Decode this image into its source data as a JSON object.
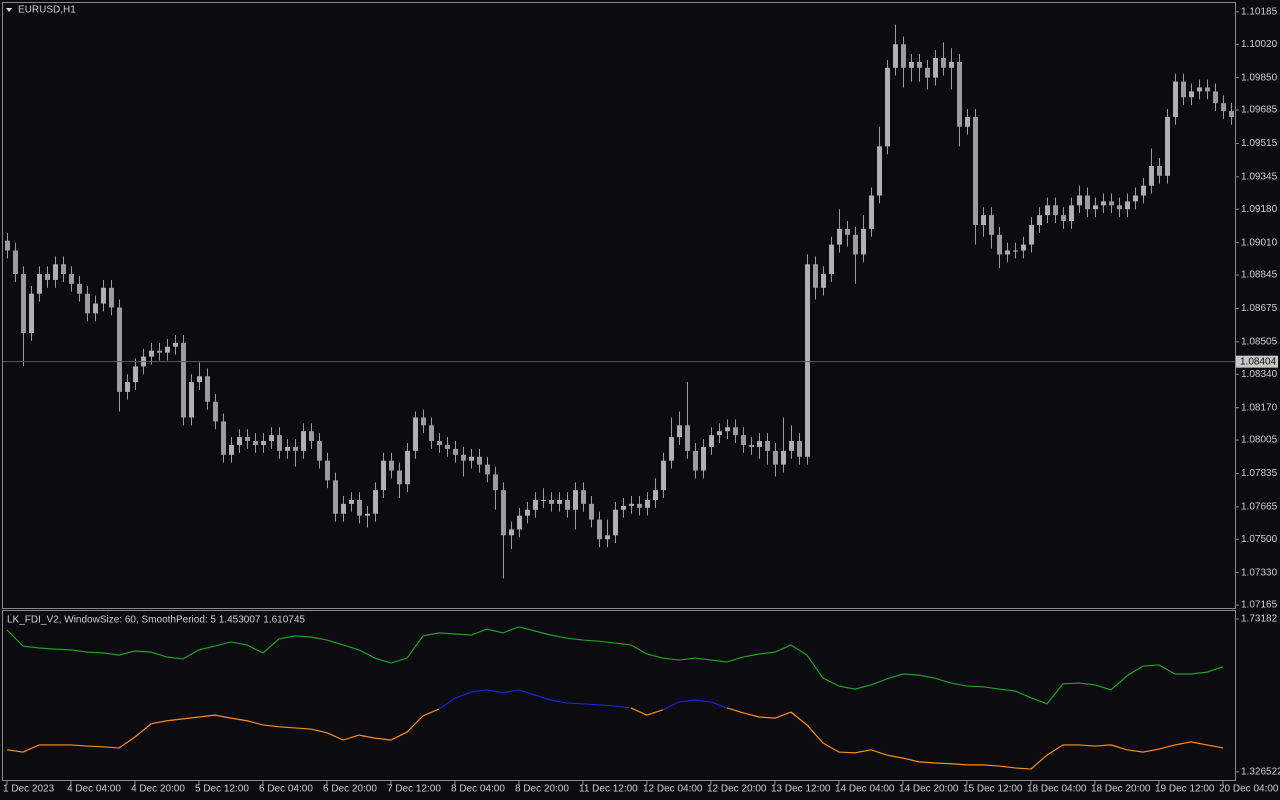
{
  "chart_data": [
    {
      "type": "candlestick",
      "title": "EURUSD,H1",
      "color": "#9c9c9c",
      "open": [
        1.0902,
        1.0897,
        1.0885,
        1.0855,
        1.0875,
        1.0885,
        1.0882,
        1.089,
        1.0885,
        1.088,
        1.0875,
        1.0865,
        1.087,
        1.0878,
        1.0868,
        1.0825,
        1.083,
        1.0838,
        1.0843,
        1.0846,
        1.0845,
        1.0848,
        1.085,
        1.0812,
        1.083,
        1.0833,
        1.082,
        1.081,
        1.0793,
        1.0798,
        1.0802,
        1.08,
        1.0798,
        1.08,
        1.0803,
        1.0795,
        1.0797,
        1.0795,
        1.0805,
        1.08,
        1.079,
        1.078,
        1.0763,
        1.0768,
        1.077,
        1.0762,
        1.0763,
        1.0775,
        1.079,
        1.0785,
        1.0778,
        1.0795,
        1.0812,
        1.0808,
        1.08,
        1.0798,
        1.0796,
        1.0793,
        1.079,
        1.0792,
        1.0788,
        1.0783,
        1.0775,
        1.0752,
        1.0755,
        1.0762,
        1.0765,
        1.077,
        1.077,
        1.0768,
        1.077,
        1.0765,
        1.0775,
        1.0768,
        1.076,
        1.075,
        1.0752,
        1.0765,
        1.0767,
        1.0768,
        1.0766,
        1.077,
        1.0775,
        1.079,
        1.0802,
        1.0808,
        1.0795,
        1.0785,
        1.0797,
        1.0803,
        1.0805,
        1.0807,
        1.0803,
        1.0798,
        1.0797,
        1.08,
        1.0795,
        1.0788,
        1.0795,
        1.08,
        1.0792,
        1.089,
        1.0878,
        1.0885,
        1.09,
        1.0908,
        1.0905,
        1.0895,
        1.0908,
        1.0925,
        1.095,
        1.099,
        1.1002,
        1.099,
        1.0993,
        1.099,
        1.0985,
        1.0995,
        1.099,
        1.0993,
        1.096,
        1.0965,
        1.091,
        1.0915,
        1.0905,
        1.0895,
        1.0897,
        1.0897,
        1.09,
        1.091,
        1.0915,
        1.092,
        1.0915,
        1.0912,
        1.092,
        1.0925,
        1.0918,
        1.092,
        1.0922,
        1.092,
        1.0918,
        1.0922,
        1.0925,
        1.093,
        1.094,
        1.0935,
        1.0965,
        1.0983,
        1.0975,
        1.0978,
        1.098,
        1.0978,
        1.0972,
        1.0968
      ],
      "high": [
        1.0906,
        1.0901,
        1.0889,
        1.0879,
        1.0889,
        1.0889,
        1.0894,
        1.0894,
        1.0889,
        1.0884,
        1.0879,
        1.0874,
        1.0882,
        1.0882,
        1.0872,
        1.0834,
        1.0842,
        1.0847,
        1.085,
        1.085,
        1.0852,
        1.0854,
        1.0854,
        1.0834,
        1.084,
        1.0837,
        1.0824,
        1.0814,
        1.0802,
        1.0806,
        1.0806,
        1.0804,
        1.0804,
        1.0807,
        1.0807,
        1.0801,
        1.0801,
        1.0809,
        1.0809,
        1.0804,
        1.0794,
        1.0784,
        1.0772,
        1.0774,
        1.0774,
        1.0767,
        1.0779,
        1.0794,
        1.0794,
        1.0789,
        1.0799,
        1.0815,
        1.0816,
        1.0812,
        1.0804,
        1.0802,
        1.08,
        1.0797,
        1.0796,
        1.0796,
        1.0792,
        1.0787,
        1.0779,
        1.0759,
        1.0766,
        1.0769,
        1.0774,
        1.0776,
        1.0774,
        1.0774,
        1.0774,
        1.0779,
        1.0779,
        1.0772,
        1.0764,
        1.076,
        1.0769,
        1.0771,
        1.0772,
        1.0772,
        1.0774,
        1.0781,
        1.0794,
        1.0812,
        1.0815,
        1.083,
        1.0799,
        1.0801,
        1.0807,
        1.0809,
        1.0811,
        1.0811,
        1.0807,
        1.0802,
        1.0804,
        1.0804,
        1.0799,
        1.0812,
        1.0808,
        1.0804,
        1.0895,
        1.0894,
        1.0889,
        1.0904,
        1.0918,
        1.0912,
        1.0909,
        1.0915,
        1.0929,
        1.096,
        1.0994,
        1.1012,
        1.1006,
        1.0997,
        1.0997,
        1.0994,
        1.0999,
        1.1003,
        1.1,
        1.0997,
        1.0969,
        1.0969,
        1.0919,
        1.0919,
        1.0909,
        1.0901,
        1.0901,
        1.0904,
        1.0914,
        1.0919,
        1.0924,
        1.0924,
        1.0919,
        1.0924,
        1.093,
        1.0929,
        1.0924,
        1.0926,
        1.0926,
        1.0924,
        1.0926,
        1.0929,
        1.0934,
        1.0949,
        1.0944,
        1.0969,
        1.0987,
        1.0987,
        1.0982,
        1.0984,
        1.0984,
        1.0982,
        1.0976,
        1.0972
      ],
      "low": [
        1.0893,
        1.0881,
        1.0838,
        1.0851,
        1.0871,
        1.0878,
        1.0878,
        1.0881,
        1.0876,
        1.0871,
        1.0861,
        1.0861,
        1.0866,
        1.0864,
        1.0815,
        1.0821,
        1.0826,
        1.0834,
        1.0839,
        1.0841,
        1.0841,
        1.0844,
        1.0808,
        1.0808,
        1.0826,
        1.0816,
        1.0806,
        1.0789,
        1.0789,
        1.0794,
        1.0796,
        1.0794,
        1.0794,
        1.0796,
        1.0791,
        1.0791,
        1.0787,
        1.0791,
        1.0796,
        1.0786,
        1.0776,
        1.0759,
        1.0759,
        1.0764,
        1.0758,
        1.0756,
        1.0759,
        1.0771,
        1.0781,
        1.0771,
        1.0774,
        1.0791,
        1.0804,
        1.0796,
        1.0794,
        1.0792,
        1.0789,
        1.0782,
        1.0786,
        1.0784,
        1.0779,
        1.0765,
        1.073,
        1.0745,
        1.0751,
        1.0758,
        1.0761,
        1.0766,
        1.0764,
        1.0764,
        1.0761,
        1.0755,
        1.0764,
        1.0756,
        1.0746,
        1.0746,
        1.0748,
        1.0761,
        1.0763,
        1.0762,
        1.0762,
        1.0766,
        1.0771,
        1.0786,
        1.0798,
        1.0791,
        1.0781,
        1.0781,
        1.0793,
        1.0799,
        1.0801,
        1.0799,
        1.0794,
        1.0793,
        1.0791,
        1.0788,
        1.0782,
        1.0784,
        1.0791,
        1.0788,
        1.0788,
        1.0872,
        1.0874,
        1.0881,
        1.0896,
        1.0899,
        1.088,
        1.0891,
        1.0904,
        1.0921,
        1.0946,
        1.0986,
        1.098,
        1.0983,
        1.0983,
        1.0979,
        1.0981,
        1.0986,
        1.0979,
        1.095,
        1.0956,
        1.09,
        1.0904,
        1.0898,
        1.0888,
        1.0891,
        1.0893,
        1.0893,
        1.0896,
        1.0906,
        1.0911,
        1.0911,
        1.0908,
        1.0908,
        1.0916,
        1.0914,
        1.0914,
        1.0916,
        1.0916,
        1.0914,
        1.0914,
        1.0918,
        1.0921,
        1.0926,
        1.0931,
        1.0931,
        1.0961,
        1.0971,
        1.0971,
        1.0974,
        1.0974,
        1.0968,
        1.0964,
        1.0961
      ],
      "close": [
        1.0897,
        1.0885,
        1.0855,
        1.0875,
        1.0885,
        1.0882,
        1.089,
        1.0885,
        1.088,
        1.0875,
        1.0865,
        1.087,
        1.0878,
        1.0868,
        1.0825,
        1.083,
        1.0838,
        1.0843,
        1.0846,
        1.0845,
        1.0848,
        1.085,
        1.0812,
        1.083,
        1.0833,
        1.082,
        1.081,
        1.0793,
        1.0798,
        1.0802,
        1.08,
        1.0798,
        1.08,
        1.0803,
        1.0795,
        1.0797,
        1.0795,
        1.0805,
        1.08,
        1.079,
        1.078,
        1.0763,
        1.0768,
        1.077,
        1.0762,
        1.0763,
        1.0775,
        1.079,
        1.0785,
        1.0778,
        1.0795,
        1.0812,
        1.0808,
        1.08,
        1.0798,
        1.0796,
        1.0793,
        1.079,
        1.0792,
        1.0788,
        1.0783,
        1.0775,
        1.0752,
        1.0755,
        1.0762,
        1.0765,
        1.077,
        1.077,
        1.0768,
        1.077,
        1.0765,
        1.0775,
        1.0768,
        1.076,
        1.075,
        1.0752,
        1.0765,
        1.0767,
        1.0768,
        1.0766,
        1.077,
        1.0775,
        1.079,
        1.0802,
        1.0808,
        1.0795,
        1.0785,
        1.0797,
        1.0803,
        1.0805,
        1.0807,
        1.0803,
        1.0798,
        1.0797,
        1.08,
        1.0795,
        1.0788,
        1.0795,
        1.08,
        1.0792,
        1.089,
        1.0878,
        1.0885,
        1.09,
        1.0908,
        1.0905,
        1.0895,
        1.0908,
        1.0925,
        1.095,
        1.099,
        1.1002,
        1.099,
        1.0993,
        1.099,
        1.0985,
        1.0995,
        1.099,
        1.0993,
        1.096,
        1.0965,
        1.091,
        1.0915,
        1.0905,
        1.0895,
        1.0897,
        1.0897,
        1.09,
        1.091,
        1.0915,
        1.092,
        1.0915,
        1.0912,
        1.092,
        1.0925,
        1.0918,
        1.092,
        1.0922,
        1.092,
        1.0918,
        1.0922,
        1.0925,
        1.093,
        1.094,
        1.0935,
        1.0965,
        1.0983,
        1.0975,
        1.0978,
        1.098,
        1.0978,
        1.0972,
        1.0968,
        1.0965
      ],
      "xticks": [
        {
          "value": 0,
          "label": "1 Dec 2023"
        },
        {
          "value": 8,
          "label": "4 Dec 04:00"
        },
        {
          "value": 16,
          "label": "4 Dec 20:00"
        },
        {
          "value": 24,
          "label": "5 Dec 12:00"
        },
        {
          "value": 32,
          "label": "6 Dec 04:00"
        },
        {
          "value": 40,
          "label": "6 Dec 20:00"
        },
        {
          "value": 48,
          "label": "7 Dec 12:00"
        },
        {
          "value": 56,
          "label": "8 Dec 04:00"
        },
        {
          "value": 64,
          "label": "8 Dec 20:00"
        },
        {
          "value": 72,
          "label": "11 Dec 12:00"
        },
        {
          "value": 80,
          "label": "12 Dec 04:00"
        },
        {
          "value": 88,
          "label": "12 Dec 20:00"
        },
        {
          "value": 96,
          "label": "13 Dec 12:00"
        },
        {
          "value": 104,
          "label": "14 Dec 04:00"
        },
        {
          "value": 112,
          "label": "14 Dec 20:00"
        },
        {
          "value": 120,
          "label": "15 Dec 12:00"
        },
        {
          "value": 128,
          "label": "18 Dec 04:00"
        },
        {
          "value": 136,
          "label": "18 Dec 20:00"
        },
        {
          "value": 144,
          "label": "19 Dec 12:00"
        },
        {
          "value": 152,
          "label": "20 Dec 04:00"
        }
      ],
      "ylim": [
        1.0715,
        1.1023
      ],
      "yticks": [
        1.10185,
        {
          "value": 1.1002,
          "label": "1.10020"
        },
        {
          "value": 1.0985,
          "label": "1.09850"
        },
        1.09685,
        1.09515,
        1.09345,
        {
          "value": 1.0918,
          "label": "1.09180"
        },
        {
          "value": 1.0901,
          "label": "1.09010"
        },
        1.08845,
        1.08675,
        1.08505,
        {
          "value": 1.0834,
          "label": "1.08340"
        },
        {
          "value": 1.0817,
          "label": "1.08170"
        },
        1.08005,
        1.07835,
        1.07665,
        {
          "value": 1.075,
          "label": "1.07500"
        },
        {
          "value": 1.0733,
          "label": "1.07330"
        },
        1.07165
      ],
      "last_price": 1.08404
    },
    {
      "type": "line",
      "title": "LK_FDI_V2, WindowSize: 60, SmoothPeriod: 5  1.453007 1.610745",
      "x": [
        0,
        2,
        4,
        6,
        8,
        10,
        12,
        14,
        16,
        18,
        20,
        22,
        24,
        26,
        28,
        30,
        32,
        34,
        36,
        38,
        40,
        42,
        44,
        46,
        48,
        50,
        52,
        54,
        56,
        58,
        60,
        62,
        64,
        66,
        68,
        70,
        72,
        74,
        76,
        78,
        80,
        82,
        84,
        86,
        88,
        90,
        92,
        94,
        96,
        98,
        100,
        102,
        104,
        106,
        108,
        110,
        112,
        114,
        116,
        118,
        120,
        122,
        124,
        126,
        128,
        130,
        132,
        134,
        136,
        138,
        140,
        142,
        144,
        146,
        148,
        150,
        152
      ],
      "series": [
        {
          "color": "#22a022",
          "values": [
            1.703,
            1.66,
            1.655,
            1.652,
            1.65,
            1.644,
            1.642,
            1.636,
            1.647,
            1.644,
            1.631,
            1.626,
            1.65,
            1.66,
            1.671,
            1.663,
            1.642,
            1.679,
            1.687,
            1.684,
            1.676,
            1.663,
            1.65,
            1.628,
            1.615,
            1.628,
            1.687,
            1.695,
            1.692,
            1.689,
            1.705,
            1.695,
            1.711,
            1.7,
            1.689,
            1.681,
            1.676,
            1.673,
            1.668,
            1.663,
            1.639,
            1.628,
            1.623,
            1.628,
            1.623,
            1.618,
            1.631,
            1.639,
            1.644,
            1.663,
            1.636,
            1.575,
            1.554,
            1.546,
            1.557,
            1.573,
            1.586,
            1.583,
            1.575,
            1.562,
            1.554,
            1.552,
            1.546,
            1.541,
            1.523,
            1.507,
            1.56,
            1.562,
            1.557,
            1.544,
            1.581,
            1.607,
            1.61,
            1.586,
            1.586,
            1.591,
            1.605
          ]
        },
        {
          "color": "#ff8c1a",
          "values": [
            1.385,
            1.379,
            1.398,
            1.398,
            1.398,
            1.395,
            1.393,
            1.39,
            1.419,
            1.454,
            1.462,
            1.467,
            1.472,
            1.477,
            1.469,
            1.462,
            1.451,
            1.446,
            1.443,
            1.44,
            1.43,
            1.411,
            1.424,
            1.416,
            1.411,
            1.432,
            1.475,
            1.493,
            null,
            null,
            null,
            null,
            null,
            null,
            null,
            null,
            null,
            null,
            null,
            1.496,
            1.477,
            1.491,
            null,
            null,
            null,
            1.496,
            1.483,
            1.472,
            1.469,
            1.485,
            1.451,
            1.403,
            1.379,
            1.377,
            1.385,
            1.371,
            1.363,
            1.353,
            1.35,
            1.348,
            1.345,
            1.345,
            1.342,
            1.337,
            1.334,
            1.371,
            1.398,
            1.398,
            1.395,
            1.398,
            1.385,
            1.379,
            1.387,
            1.398,
            1.406,
            1.398,
            1.39
          ]
        },
        {
          "color": "#2020e0",
          "values": [
            null,
            null,
            null,
            null,
            null,
            null,
            null,
            null,
            null,
            null,
            null,
            null,
            null,
            null,
            null,
            null,
            null,
            null,
            null,
            null,
            null,
            null,
            null,
            null,
            null,
            null,
            null,
            1.493,
            1.522,
            1.538,
            1.544,
            1.536,
            1.544,
            1.53,
            1.517,
            1.509,
            1.507,
            1.504,
            1.501,
            1.496,
            null,
            1.491,
            1.512,
            1.517,
            1.512,
            1.496,
            null,
            null,
            null,
            null,
            null,
            null,
            null,
            null,
            null,
            null,
            null,
            null,
            null,
            null,
            null,
            null,
            null,
            null,
            null,
            null,
            null,
            null,
            null,
            null,
            null,
            null,
            null,
            null,
            null,
            null,
            null
          ]
        }
      ],
      "ylim": [
        1.305,
        1.753
      ],
      "yticks": [
        1.73182,
        1.326522
      ]
    }
  ]
}
